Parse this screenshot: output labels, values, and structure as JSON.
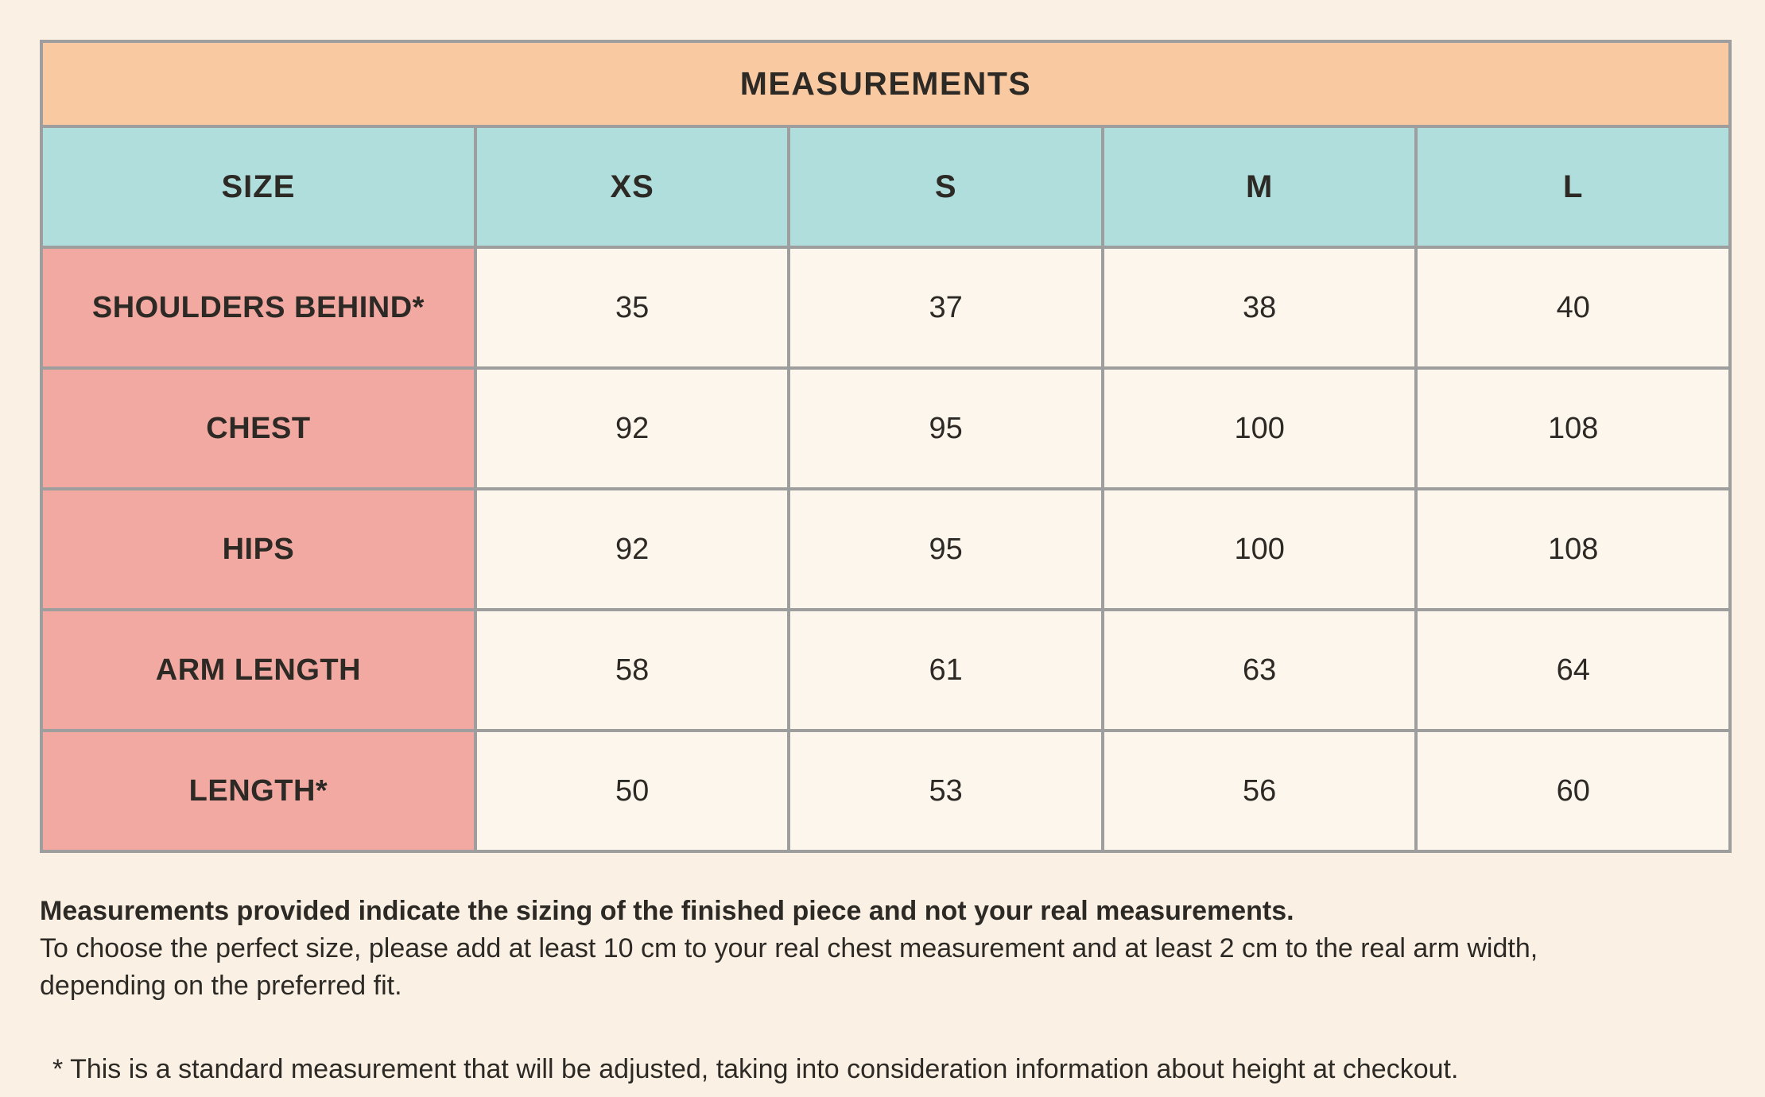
{
  "table": {
    "title": "MEASUREMENTS",
    "columns": [
      "SIZE",
      "XS",
      "S",
      "M",
      "L"
    ],
    "rows": [
      {
        "label": "SHOULDERS BEHIND*",
        "values": [
          "35",
          "37",
          "38",
          "40"
        ]
      },
      {
        "label": "CHEST",
        "values": [
          "92",
          "95",
          "100",
          "108"
        ]
      },
      {
        "label": "HIPS",
        "values": [
          "92",
          "95",
          "100",
          "108"
        ]
      },
      {
        "label": "ARM LENGTH",
        "values": [
          "58",
          "61",
          "63",
          "64"
        ]
      },
      {
        "label": "LENGTH*",
        "values": [
          "50",
          "53",
          "56",
          "60"
        ]
      }
    ]
  },
  "notes": {
    "bold": "Measurements provided indicate the sizing of the finished piece and not your real measurements.",
    "line1": "To choose the perfect size, please add at least 10 cm to your real chest measurement and at least 2 cm to the real arm width,",
    "line2": "depending on the preferred fit.",
    "footnote": "* This is a standard measurement that will be adjusted, taking into consideration information about height at checkout."
  },
  "colors": {
    "page_bg": "#FAF1E4",
    "title_bg": "#F9C9A2",
    "header_bg": "#AFDEDD",
    "label_bg": "#F2A9A2",
    "cell_bg": "#FDF6EC",
    "border": "#9E9E9E",
    "text": "#2D2A26"
  },
  "chart_data": {
    "type": "table",
    "title": "MEASUREMENTS",
    "columns": [
      "SIZE",
      "XS",
      "S",
      "M",
      "L"
    ],
    "rows": [
      [
        "SHOULDERS BEHIND*",
        35,
        37,
        38,
        40
      ],
      [
        "CHEST",
        92,
        95,
        100,
        108
      ],
      [
        "HIPS",
        92,
        95,
        100,
        108
      ],
      [
        "ARM LENGTH",
        58,
        61,
        63,
        64
      ],
      [
        "LENGTH*",
        50,
        53,
        56,
        60
      ]
    ],
    "notes": [
      "Measurements provided indicate the sizing of the finished piece and not your real measurements.",
      "To choose the perfect size, please add at least 10 cm to your real chest measurement and at least 2 cm to the real arm width, depending on the preferred fit.",
      "* This is a standard measurement that will be adjusted, taking into consideration information about height at checkout."
    ]
  }
}
